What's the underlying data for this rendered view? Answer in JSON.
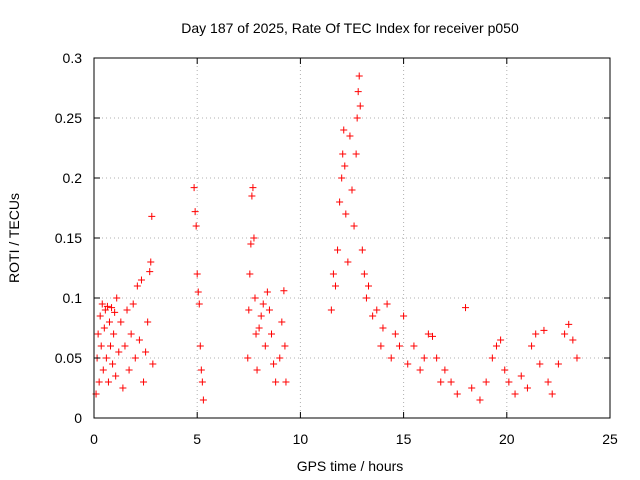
{
  "chart_data": {
    "type": "scatter",
    "title": "Day 187 of 2025, Rate Of TEC Index for receiver p050",
    "xlabel": "GPS time / hours",
    "ylabel": "ROTI / TECUs",
    "xlim": [
      0,
      25
    ],
    "ylim": [
      0,
      0.3
    ],
    "x_ticks": [
      "0",
      "5",
      "10",
      "15",
      "20",
      "25"
    ],
    "y_ticks": [
      "0",
      "0.05",
      "0.1",
      "0.15",
      "0.2",
      "0.25",
      "0.3"
    ],
    "grid": true,
    "marker": "+",
    "marker_color": "#ff0000",
    "series": [
      {
        "points": [
          [
            0.1,
            0.02
          ],
          [
            0.15,
            0.05
          ],
          [
            0.2,
            0.07
          ],
          [
            0.25,
            0.03
          ],
          [
            0.3,
            0.085
          ],
          [
            0.35,
            0.06
          ],
          [
            0.4,
            0.095
          ],
          [
            0.45,
            0.04
          ],
          [
            0.5,
            0.075
          ],
          [
            0.55,
            0.09
          ],
          [
            0.6,
            0.05
          ],
          [
            0.65,
            0.093
          ],
          [
            0.7,
            0.03
          ],
          [
            0.75,
            0.08
          ],
          [
            0.8,
            0.06
          ],
          [
            0.85,
            0.092
          ],
          [
            0.9,
            0.045
          ],
          [
            0.95,
            0.07
          ],
          [
            1.0,
            0.088
          ],
          [
            1.05,
            0.035
          ],
          [
            1.1,
            0.1
          ],
          [
            1.2,
            0.055
          ],
          [
            1.3,
            0.08
          ],
          [
            1.4,
            0.025
          ],
          [
            1.5,
            0.06
          ],
          [
            1.6,
            0.09
          ],
          [
            1.7,
            0.04
          ],
          [
            1.8,
            0.07
          ],
          [
            1.9,
            0.095
          ],
          [
            2.0,
            0.05
          ],
          [
            2.1,
            0.11
          ],
          [
            2.2,
            0.065
          ],
          [
            2.3,
            0.115
          ],
          [
            2.4,
            0.03
          ],
          [
            2.5,
            0.055
          ],
          [
            2.6,
            0.08
          ],
          [
            2.7,
            0.122
          ],
          [
            2.75,
            0.13
          ],
          [
            2.8,
            0.168
          ],
          [
            2.85,
            0.045
          ],
          [
            4.85,
            0.192
          ],
          [
            4.9,
            0.172
          ],
          [
            4.95,
            0.16
          ],
          [
            5.0,
            0.12
          ],
          [
            5.05,
            0.105
          ],
          [
            5.1,
            0.095
          ],
          [
            5.15,
            0.06
          ],
          [
            5.2,
            0.04
          ],
          [
            5.25,
            0.03
          ],
          [
            5.3,
            0.015
          ],
          [
            7.45,
            0.05
          ],
          [
            7.5,
            0.09
          ],
          [
            7.55,
            0.12
          ],
          [
            7.6,
            0.145
          ],
          [
            7.65,
            0.185
          ],
          [
            7.7,
            0.192
          ],
          [
            7.75,
            0.15
          ],
          [
            7.8,
            0.1
          ],
          [
            7.85,
            0.07
          ],
          [
            7.9,
            0.04
          ],
          [
            8.0,
            0.075
          ],
          [
            8.1,
            0.085
          ],
          [
            8.2,
            0.095
          ],
          [
            8.3,
            0.06
          ],
          [
            8.4,
            0.105
          ],
          [
            8.5,
            0.09
          ],
          [
            8.6,
            0.07
          ],
          [
            8.7,
            0.045
          ],
          [
            8.8,
            0.03
          ],
          [
            9.0,
            0.05
          ],
          [
            9.1,
            0.08
          ],
          [
            9.2,
            0.106
          ],
          [
            9.25,
            0.06
          ],
          [
            9.3,
            0.03
          ],
          [
            11.5,
            0.09
          ],
          [
            11.6,
            0.12
          ],
          [
            11.7,
            0.11
          ],
          [
            11.8,
            0.14
          ],
          [
            11.9,
            0.18
          ],
          [
            12.0,
            0.2
          ],
          [
            12.05,
            0.22
          ],
          [
            12.1,
            0.24
          ],
          [
            12.15,
            0.21
          ],
          [
            12.2,
            0.17
          ],
          [
            12.3,
            0.13
          ],
          [
            12.4,
            0.235
          ],
          [
            12.5,
            0.19
          ],
          [
            12.6,
            0.16
          ],
          [
            12.7,
            0.22
          ],
          [
            12.75,
            0.25
          ],
          [
            12.8,
            0.272
          ],
          [
            12.85,
            0.285
          ],
          [
            12.9,
            0.26
          ],
          [
            13.0,
            0.14
          ],
          [
            13.1,
            0.12
          ],
          [
            13.2,
            0.1
          ],
          [
            13.3,
            0.11
          ],
          [
            13.5,
            0.085
          ],
          [
            13.7,
            0.09
          ],
          [
            13.9,
            0.06
          ],
          [
            14.0,
            0.075
          ],
          [
            14.2,
            0.095
          ],
          [
            14.4,
            0.05
          ],
          [
            14.6,
            0.07
          ],
          [
            14.8,
            0.06
          ],
          [
            15.0,
            0.085
          ],
          [
            15.2,
            0.045
          ],
          [
            15.5,
            0.06
          ],
          [
            15.8,
            0.04
          ],
          [
            16.0,
            0.05
          ],
          [
            16.2,
            0.07
          ],
          [
            16.4,
            0.068
          ],
          [
            16.6,
            0.05
          ],
          [
            16.8,
            0.03
          ],
          [
            17.0,
            0.04
          ],
          [
            17.3,
            0.03
          ],
          [
            17.6,
            0.02
          ],
          [
            18.0,
            0.092
          ],
          [
            18.3,
            0.025
          ],
          [
            18.7,
            0.015
          ],
          [
            19.0,
            0.03
          ],
          [
            19.3,
            0.05
          ],
          [
            19.5,
            0.06
          ],
          [
            19.7,
            0.065
          ],
          [
            19.9,
            0.04
          ],
          [
            20.1,
            0.03
          ],
          [
            20.4,
            0.02
          ],
          [
            20.7,
            0.035
          ],
          [
            21.0,
            0.025
          ],
          [
            21.2,
            0.06
          ],
          [
            21.4,
            0.07
          ],
          [
            21.6,
            0.045
          ],
          [
            21.8,
            0.073
          ],
          [
            22.0,
            0.03
          ],
          [
            22.2,
            0.02
          ],
          [
            22.5,
            0.045
          ],
          [
            22.8,
            0.07
          ],
          [
            23.0,
            0.078
          ],
          [
            23.2,
            0.065
          ],
          [
            23.4,
            0.05
          ]
        ]
      }
    ]
  }
}
